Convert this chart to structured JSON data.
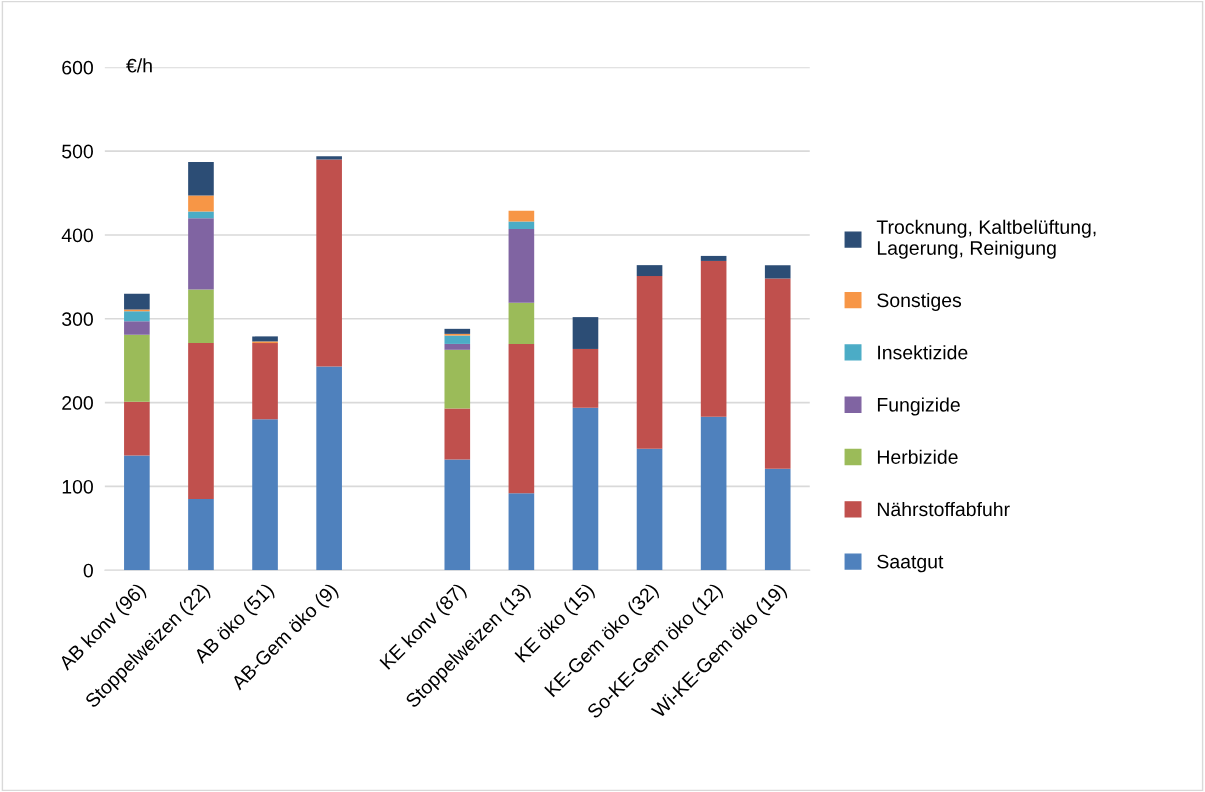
{
  "chart_data": {
    "type": "bar",
    "stacked": true,
    "ylabel": "€/h",
    "categories": [
      "AB konv (96)",
      "Stoppelweizen (22)",
      "AB öko (51)",
      "AB-Gem öko (9)",
      null,
      "KE konv (87)",
      "Stoppelweizen (13)",
      "KE öko (15)",
      "KE-Gem öko (32)",
      "So-KE-Gem öko (12)",
      "Wi-KE-Gem öko (19)"
    ],
    "series": [
      {
        "name": "Saatgut",
        "color": "#4f81bd",
        "values": [
          137,
          85,
          180,
          243,
          null,
          132,
          92,
          194,
          145,
          183,
          121
        ]
      },
      {
        "name": "Nährstoffabfuhr",
        "color": "#c0504d",
        "values": [
          64,
          186,
          91,
          247,
          null,
          61,
          178,
          70,
          206,
          186,
          227
        ]
      },
      {
        "name": "Herbizide",
        "color": "#9bbb59",
        "values": [
          80,
          64,
          null,
          null,
          null,
          70,
          49,
          null,
          null,
          null,
          null
        ]
      },
      {
        "name": "Fungizide",
        "color": "#8064a2",
        "values": [
          16,
          85,
          null,
          null,
          null,
          7,
          88,
          null,
          null,
          null,
          null
        ]
      },
      {
        "name": "Insektizide",
        "color": "#4bacc6",
        "values": [
          12,
          8,
          null,
          null,
          null,
          10,
          9,
          null,
          null,
          null,
          null
        ]
      },
      {
        "name": "Sonstiges",
        "color": "#f79646",
        "values": [
          2,
          19,
          2,
          null,
          null,
          2,
          13,
          null,
          null,
          null,
          null
        ]
      },
      {
        "name": "Trocknung, Kaltbelüftung,\nLagerung, Reinigung",
        "color": "#2c4d75",
        "values": [
          19,
          40,
          6,
          4,
          null,
          6,
          null,
          38,
          13,
          6,
          16
        ]
      }
    ],
    "ylim": [
      0,
      600
    ],
    "yticks": [
      0,
      100,
      200,
      300,
      400,
      500,
      600
    ],
    "grid": "y",
    "legend": "right"
  }
}
